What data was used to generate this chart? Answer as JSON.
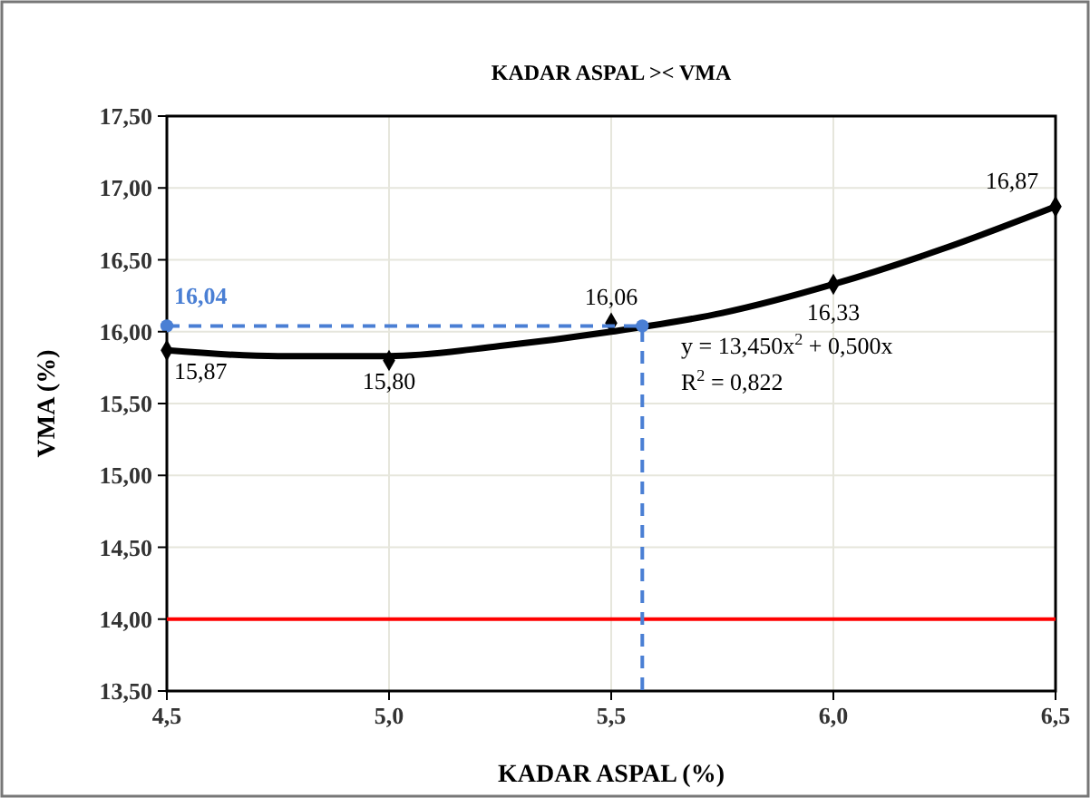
{
  "chart_data": {
    "type": "scatter",
    "title": "KADAR ASPAL >< VMA",
    "xlabel": "KADAR ASPAL (%)",
    "ylabel": "VMA (%)",
    "x": [
      4.5,
      5.0,
      5.5,
      6.0,
      6.5
    ],
    "marker": "diamond",
    "grid": true,
    "series": [
      {
        "color": "#000000",
        "values": [
          15.87,
          15.8,
          16.06,
          16.33,
          16.87
        ],
        "value_labels": [
          "15,87",
          "15,80",
          "16,06",
          "16,33",
          "16,87"
        ]
      },
      {
        "type": "line",
        "color": "#000000",
        "marker": "none",
        "line_style": "solid",
        "x": [
          4.5,
          4.75,
          5.0,
          5.25,
          5.5,
          5.75,
          6.0,
          6.25,
          6.5
        ],
        "values": [
          15.87,
          15.83,
          15.83,
          15.9,
          16.0,
          16.13,
          16.33,
          16.58,
          16.87
        ]
      },
      {
        "type": "line",
        "color": "#4a7fd4",
        "marker": "circle",
        "line_style": "dashed",
        "x": [
          4.5,
          5.57,
          5.57
        ],
        "values": [
          16.04,
          16.04,
          13.5
        ]
      }
    ],
    "ref_lines": [
      {
        "axis": "y",
        "value": 14.0,
        "color": "#ff0000"
      }
    ],
    "annotations": [
      {
        "text": "16,04",
        "x": 4.5,
        "y": 16.04
      },
      "y = 13,450x$^{2}$ + 0,500x",
      "R$^{2}$ = 0,822"
    ],
    "xlim": [
      4.5,
      6.5
    ],
    "xticks": [
      {
        "value": 4.5,
        "label": "4,5"
      },
      {
        "value": 5.0,
        "label": "5,0"
      },
      {
        "value": 5.5,
        "label": "5,5"
      },
      {
        "value": 6.0,
        "label": "6,0"
      },
      {
        "value": 6.5,
        "label": "6,5"
      }
    ],
    "ylim": [
      13.5,
      17.5
    ],
    "yticks": [
      {
        "value": 13.5,
        "label": "13,50"
      },
      {
        "value": 14.0,
        "label": "14,00"
      },
      {
        "value": 14.5,
        "label": "14,50"
      },
      {
        "value": 15.0,
        "label": "15,00"
      },
      {
        "value": 15.5,
        "label": "15,50"
      },
      {
        "value": 16.0,
        "label": "16,00"
      },
      {
        "value": 16.5,
        "label": "16,50"
      },
      {
        "value": 17.0,
        "label": "17,00"
      },
      {
        "value": 17.5,
        "label": "17,50"
      }
    ]
  }
}
